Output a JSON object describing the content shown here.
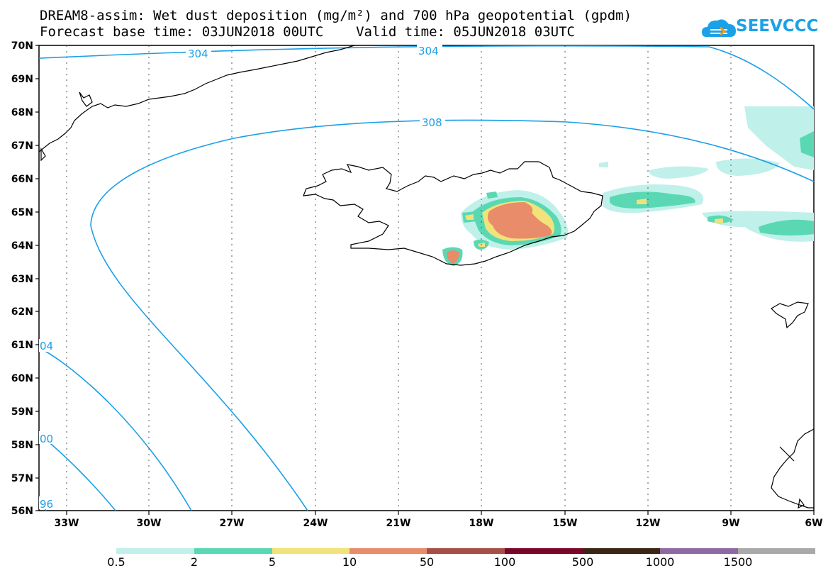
{
  "header": {
    "line1": "DREAM8-assim: Wet dust deposition (mg/m²) and 700 hPa geopotential (gpdm)",
    "line2": "Forecast base time: 03JUN2018 00UTC    Valid time: 05JUN2018 03UTC"
  },
  "logo": {
    "text": "SEEVCCC",
    "color": "#1da1e6"
  },
  "map": {
    "lat_labels": [
      "70N",
      "69N",
      "68N",
      "67N",
      "66N",
      "65N",
      "64N",
      "63N",
      "62N",
      "61N",
      "60N",
      "59N",
      "58N",
      "57N",
      "56N"
    ],
    "lon_labels": [
      "33W",
      "30W",
      "27W",
      "24W",
      "21W",
      "18W",
      "15W",
      "12W",
      "9W",
      "6W"
    ],
    "contour_labels": [
      "304",
      "304",
      "308",
      "04",
      "00",
      "96"
    ],
    "contour_color": "#1a9fe8"
  },
  "colorbar": {
    "colors": [
      "#c0f0ea",
      "#5ad8b4",
      "#f2e27a",
      "#e88c6a",
      "#a84e48",
      "#7a0628",
      "#3a2412",
      "#8e6aa2",
      "#a9a9a9"
    ],
    "labels": [
      "0.5",
      "2",
      "5",
      "10",
      "50",
      "100",
      "500",
      "1000",
      "1500"
    ]
  }
}
